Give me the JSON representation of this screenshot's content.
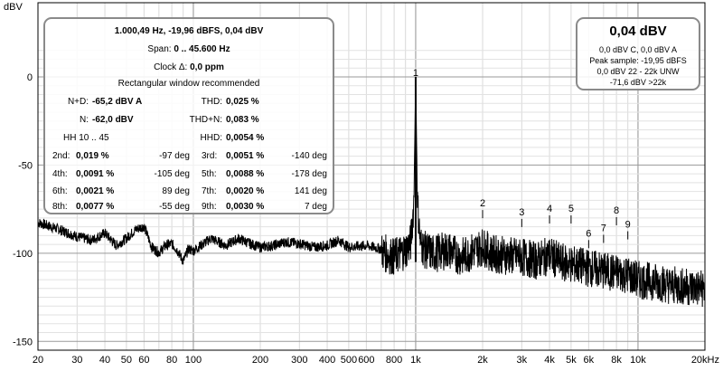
{
  "chart_data": {
    "type": "line",
    "ylabel": "dBV",
    "xlabel": "",
    "x_scale": "log",
    "xlim": [
      20,
      20000
    ],
    "ylim": [
      -155,
      0
    ],
    "y_ticks": [
      {
        "value": 0,
        "label": "0"
      },
      {
        "value": -50,
        "label": "-50"
      },
      {
        "value": -100,
        "label": "-100"
      },
      {
        "value": -150,
        "label": "-150"
      }
    ],
    "x_ticks": [
      {
        "value": 20,
        "label": "20"
      },
      {
        "value": 30,
        "label": "30"
      },
      {
        "value": 40,
        "label": "40"
      },
      {
        "value": 50,
        "label": "50"
      },
      {
        "value": 60,
        "label": "60"
      },
      {
        "value": 80,
        "label": "80"
      },
      {
        "value": 100,
        "label": "100"
      },
      {
        "value": 200,
        "label": "200"
      },
      {
        "value": 300,
        "label": "300"
      },
      {
        "value": 400,
        "label": "400"
      },
      {
        "value": 500,
        "label": "500"
      },
      {
        "value": 600,
        "label": "600"
      },
      {
        "value": 800,
        "label": "800"
      },
      {
        "value": 1000,
        "label": "1k"
      },
      {
        "value": 2000,
        "label": "2k"
      },
      {
        "value": 3000,
        "label": "3k"
      },
      {
        "value": 4000,
        "label": "4k"
      },
      {
        "value": 5000,
        "label": "5k"
      },
      {
        "value": 6000,
        "label": "6k"
      },
      {
        "value": 8000,
        "label": "8k"
      },
      {
        "value": 10000,
        "label": "10k"
      },
      {
        "value": 20000,
        "label": "20kHz"
      }
    ],
    "grid": true,
    "major_grid_x": [
      100,
      1000,
      10000
    ],
    "series": [
      {
        "color": "#000000",
        "points": [
          [
            20,
            -82
          ],
          [
            25,
            -86
          ],
          [
            30,
            -90
          ],
          [
            35,
            -92
          ],
          [
            40,
            -88
          ],
          [
            45,
            -95
          ],
          [
            50,
            -91
          ],
          [
            55,
            -86
          ],
          [
            60,
            -84
          ],
          [
            65,
            -96
          ],
          [
            70,
            -99
          ],
          [
            75,
            -95
          ],
          [
            80,
            -94
          ],
          [
            85,
            -98
          ],
          [
            90,
            -104
          ],
          [
            95,
            -97
          ],
          [
            100,
            -98
          ],
          [
            120,
            -91
          ],
          [
            140,
            -95
          ],
          [
            160,
            -91
          ],
          [
            180,
            -94
          ],
          [
            200,
            -96
          ],
          [
            230,
            -95
          ],
          [
            260,
            -93
          ],
          [
            300,
            -94
          ],
          [
            350,
            -96
          ],
          [
            400,
            -95
          ],
          [
            450,
            -92
          ],
          [
            500,
            -96
          ],
          [
            600,
            -95
          ],
          [
            700,
            -97
          ],
          [
            800,
            -100
          ],
          [
            900,
            -96
          ],
          [
            950,
            -92
          ],
          [
            980,
            -70
          ],
          [
            990,
            -40
          ],
          [
            1000,
            0
          ],
          [
            1010,
            -40
          ],
          [
            1020,
            -70
          ],
          [
            1050,
            -92
          ],
          [
            1100,
            -96
          ],
          [
            1200,
            -98
          ],
          [
            1400,
            -96
          ],
          [
            1600,
            -100
          ],
          [
            1800,
            -97
          ],
          [
            2000,
            -94
          ],
          [
            2200,
            -98
          ],
          [
            2500,
            -99
          ],
          [
            3000,
            -100
          ],
          [
            3500,
            -102
          ],
          [
            4000,
            -99
          ],
          [
            4500,
            -103
          ],
          [
            5000,
            -104
          ],
          [
            6000,
            -106
          ],
          [
            7000,
            -108
          ],
          [
            8000,
            -109
          ],
          [
            9000,
            -110
          ],
          [
            10000,
            -113
          ],
          [
            12000,
            -114
          ],
          [
            14000,
            -116
          ],
          [
            17000,
            -117
          ],
          [
            20000,
            -118
          ]
        ]
      }
    ],
    "harmonic_markers": [
      {
        "label": "1",
        "x": 1000,
        "y": 0
      },
      {
        "label": "2",
        "x": 2000,
        "y": -74
      },
      {
        "label": "3",
        "x": 3000,
        "y": -79
      },
      {
        "label": "4",
        "x": 4000,
        "y": -77
      },
      {
        "label": "5",
        "x": 5000,
        "y": -77
      },
      {
        "label": "6",
        "x": 6000,
        "y": -91
      },
      {
        "label": "7",
        "x": 7000,
        "y": -88
      },
      {
        "label": "8",
        "x": 8000,
        "y": -78
      },
      {
        "label": "9",
        "x": 9000,
        "y": -86
      }
    ],
    "harmonic_marker_color": "#000000"
  },
  "measurement": {
    "headline": "1.000,49 Hz, -19,96 dBFS, 0,04 dBV",
    "span_label": "Span:",
    "span_value": "0 .. 45.600 Hz",
    "clock_label": "Clock Δ:",
    "clock_value": "0,0 ppm",
    "window_note": "Rectangular window recommended",
    "nd_label": "N+D:",
    "nd_value": "-65,2 dBV A",
    "thd_label": "THD:",
    "thd_value": "0,025 %",
    "n_label": "N:",
    "n_value": "-62,0 dBV",
    "thdn_label": "THD+N:",
    "thdn_value": "0,083 %",
    "hh_label": "HH 10 .. 45",
    "hhd_label": "HHD:",
    "hhd_value": "0,0054 %",
    "harmonics": [
      {
        "label": "2nd:",
        "value": "0,019 %",
        "phase": "-97 deg"
      },
      {
        "label": "3rd:",
        "value": "0,0051 %",
        "phase": "-140 deg"
      },
      {
        "label": "4th:",
        "value": "0,0091 %",
        "phase": "-105 deg"
      },
      {
        "label": "5th:",
        "value": "0,0088 %",
        "phase": "-178 deg"
      },
      {
        "label": "6th:",
        "value": "0,0021 %",
        "phase": "89 deg"
      },
      {
        "label": "7th:",
        "value": "0,0020 %",
        "phase": "141 deg"
      },
      {
        "label": "8th:",
        "value": "0,0077 %",
        "phase": "-55 deg"
      },
      {
        "label": "9th:",
        "value": "0,0030 %",
        "phase": "7 deg"
      }
    ]
  },
  "level": {
    "main": "0,04 dBV",
    "line1": "0,0 dBV C, 0,0 dBV A",
    "line2": "Peak sample: -19,95 dBFS",
    "line3": "0,0 dBV 22 - 22k UNW",
    "line4": "-71,6 dBV >22k"
  }
}
